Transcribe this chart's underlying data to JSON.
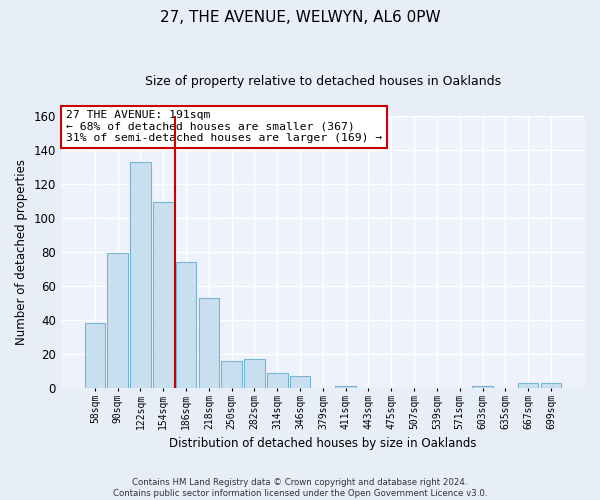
{
  "title": "27, THE AVENUE, WELWYN, AL6 0PW",
  "subtitle": "Size of property relative to detached houses in Oaklands",
  "xlabel": "Distribution of detached houses by size in Oaklands",
  "ylabel": "Number of detached properties",
  "bar_labels": [
    "58sqm",
    "90sqm",
    "122sqm",
    "154sqm",
    "186sqm",
    "218sqm",
    "250sqm",
    "282sqm",
    "314sqm",
    "346sqm",
    "379sqm",
    "411sqm",
    "443sqm",
    "475sqm",
    "507sqm",
    "539sqm",
    "571sqm",
    "603sqm",
    "635sqm",
    "667sqm",
    "699sqm"
  ],
  "bar_values": [
    38,
    79,
    133,
    109,
    74,
    53,
    16,
    17,
    9,
    7,
    0,
    1,
    0,
    0,
    0,
    0,
    0,
    1,
    0,
    3,
    3
  ],
  "bar_color": "#c8dff0",
  "bar_edge_color": "#7ab4d4",
  "vline_index": 4,
  "vline_color": "#cc0000",
  "ylim": [
    0,
    160
  ],
  "yticks": [
    0,
    20,
    40,
    60,
    80,
    100,
    120,
    140,
    160
  ],
  "annotation_title": "27 THE AVENUE: 191sqm",
  "annotation_line1": "← 68% of detached houses are smaller (367)",
  "annotation_line2": "31% of semi-detached houses are larger (169) →",
  "annotation_box_color": "#ffffff",
  "annotation_box_edge": "#cc0000",
  "footer_line1": "Contains HM Land Registry data © Crown copyright and database right 2024.",
  "footer_line2": "Contains public sector information licensed under the Open Government Licence v3.0.",
  "bg_color": "#e8eef8",
  "plot_bg_color": "#eef2fa"
}
